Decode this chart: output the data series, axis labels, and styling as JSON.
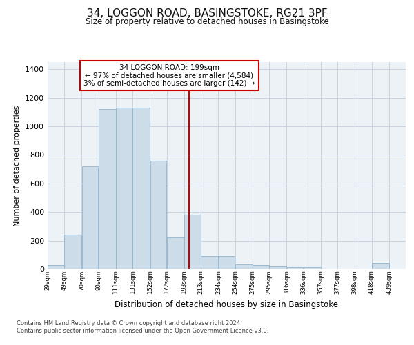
{
  "title": "34, LOGGON ROAD, BASINGSTOKE, RG21 3PF",
  "subtitle": "Size of property relative to detached houses in Basingstoke",
  "xlabel": "Distribution of detached houses by size in Basingstoke",
  "ylabel": "Number of detached properties",
  "footnote1": "Contains HM Land Registry data © Crown copyright and database right 2024.",
  "footnote2": "Contains public sector information licensed under the Open Government Licence v3.0.",
  "annotation_line1": "34 LOGGON ROAD: 199sqm",
  "annotation_line2": "← 97% of detached houses are smaller (4,584)",
  "annotation_line3": "3% of semi-detached houses are larger (142) →",
  "property_size": 199,
  "bar_left_edges": [
    29,
    49,
    70,
    90,
    111,
    131,
    152,
    172,
    193,
    213,
    234,
    254,
    275,
    295,
    316,
    336,
    357,
    377,
    398,
    418
  ],
  "bar_widths": [
    20,
    21,
    20,
    21,
    20,
    21,
    20,
    21,
    20,
    21,
    20,
    21,
    20,
    21,
    20,
    21,
    20,
    21,
    20,
    21
  ],
  "bar_heights": [
    30,
    240,
    720,
    1120,
    1130,
    1130,
    760,
    220,
    380,
    90,
    90,
    35,
    30,
    20,
    15,
    15,
    0,
    0,
    0,
    45
  ],
  "tick_labels": [
    "29sqm",
    "49sqm",
    "70sqm",
    "90sqm",
    "111sqm",
    "131sqm",
    "152sqm",
    "172sqm",
    "193sqm",
    "213sqm",
    "234sqm",
    "254sqm",
    "275sqm",
    "295sqm",
    "316sqm",
    "336sqm",
    "357sqm",
    "377sqm",
    "398sqm",
    "418sqm",
    "439sqm"
  ],
  "bar_color": "#ccdce8",
  "bar_edge_color": "#92b4cc",
  "grid_color": "#c8d4e0",
  "vline_color": "#cc0000",
  "vline_x": 199,
  "annotation_box_color": "#cc0000",
  "annotation_bg": "#ffffff",
  "ylim": [
    0,
    1450
  ],
  "yticks": [
    0,
    200,
    400,
    600,
    800,
    1000,
    1200,
    1400
  ],
  "background_color": "#edf2f7",
  "fig_bg": "#ffffff"
}
